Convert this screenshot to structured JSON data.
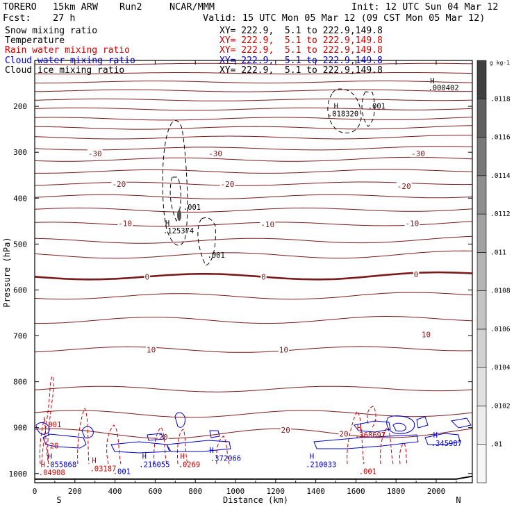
{
  "header": {
    "model": "TORERO",
    "resolution": "15km ARW",
    "run": "Run2",
    "org": "NCAR/MMM",
    "init": "Init: 12 UTC Sun 04 Mar 12",
    "fcst_label": "Fcst:",
    "fcst_value": "27 h",
    "valid": "Valid: 15 UTC Mon 05 Mar 12 (09 CST Mon 05 Mar 12)"
  },
  "legend": [
    {
      "label": "Snow mixing ratio",
      "xy": "",
      "color": "#000000"
    },
    {
      "label": "Temperature",
      "xy": "XY= 222.9,  5.1 to 222.9,149.8",
      "color": "#cc0000"
    },
    {
      "label": "Rain water mixing ratio",
      "xy": "XY= 222.9,  5.1 to 222.9,149.8",
      "color": "#cc0000"
    },
    {
      "label": "Cloud water mixing ratio",
      "xy": "XY= 222.9,  5.1 to 222.9,149.8",
      "color": "#0000cc"
    },
    {
      "label": "Cloud ice mixing ratio",
      "xy": "XY= 222.9,  5.1 to 222.9,149.8",
      "color": "#000000"
    }
  ],
  "legend_snow_xy": "XY= 222.9,  5.1 to 222.9,149.8",
  "chart_data": {
    "type": "line",
    "xlabel": "Distance (km)",
    "ylabel": "Pressure (hPa)",
    "xlim": [
      0,
      2180
    ],
    "ylim": [
      1020,
      100
    ],
    "x_ticks": [
      "0",
      "200",
      "400",
      "600",
      "800",
      "1000",
      "1200",
      "1400",
      "1600",
      "1800",
      "2000"
    ],
    "y_ticks": [
      "200",
      "300",
      "400",
      "500",
      "600",
      "700",
      "800",
      "900",
      "1000"
    ],
    "x_end_labels": {
      "left": "S",
      "right": "N"
    },
    "colorbar": {
      "unit": "g kg-1",
      "ticks": [
        ".01",
        ".0102",
        ".0104",
        ".0106",
        ".0108",
        ".011",
        ".0112",
        ".0114",
        ".0116",
        ".0118"
      ],
      "grays": [
        "#f6f6f6",
        "#ececec",
        "#e0e0e0",
        "#d2d2d2",
        "#c4c4c4",
        "#b4b4b4",
        "#a2a2a2",
        "#8e8e8e",
        "#787878",
        "#606060",
        "#404040"
      ]
    },
    "temperature_isotherms": {
      "label_values": [
        "-30",
        "-20",
        "-10",
        "0",
        "10",
        "20"
      ],
      "labels": [
        {
          "text": "-30",
          "x": 300,
          "p": 303
        },
        {
          "text": "-30",
          "x": 900,
          "p": 303
        },
        {
          "text": "-30",
          "x": 1910,
          "p": 303
        },
        {
          "text": "-20",
          "x": 420,
          "p": 369
        },
        {
          "text": "-20",
          "x": 960,
          "p": 369
        },
        {
          "text": "-20",
          "x": 1840,
          "p": 374
        },
        {
          "text": "-10",
          "x": 450,
          "p": 455
        },
        {
          "text": "-10",
          "x": 1160,
          "p": 457
        },
        {
          "text": "-10",
          "x": 1880,
          "p": 455
        },
        {
          "text": "0",
          "x": 560,
          "p": 571
        },
        {
          "text": "0",
          "x": 1140,
          "p": 571
        },
        {
          "text": "0",
          "x": 1900,
          "p": 566
        },
        {
          "text": "10",
          "x": 580,
          "p": 730
        },
        {
          "text": "10",
          "x": 1240,
          "p": 730
        },
        {
          "text": "10",
          "x": 1950,
          "p": 697
        },
        {
          "text": "20",
          "x": 640,
          "p": 920
        },
        {
          "text": "20",
          "x": 1250,
          "p": 905
        },
        {
          "text": "20",
          "x": 1540,
          "p": 913
        }
      ]
    },
    "annotations": [
      {
        "text": "H",
        "x": 1970,
        "p": 150,
        "color": "#000000"
      },
      {
        "text": ".000402",
        "x": 1960,
        "p": 165,
        "color": "#000000"
      },
      {
        "text": "H",
        "x": 1490,
        "p": 205,
        "color": "#000000"
      },
      {
        "text": ".018320",
        "x": 1460,
        "p": 222,
        "color": "#000000"
      },
      {
        "text": ".001",
        "x": 1660,
        "p": 205,
        "color": "#000000"
      },
      {
        "text": ".001",
        "x": 740,
        "p": 425,
        "color": "#000000"
      },
      {
        "text": "H",
        "x": 650,
        "p": 460,
        "color": "#000000"
      },
      {
        "text": ".125374",
        "x": 640,
        "p": 477,
        "color": "#000000"
      },
      {
        "text": ".001",
        "x": 860,
        "p": 530,
        "color": "#000000"
      },
      {
        "text": ".001",
        "x": 45,
        "p": 899,
        "color": "#cc0000"
      },
      {
        "text": "20",
        "x": 75,
        "p": 945,
        "color": "#cc0000"
      },
      {
        "text": "H",
        "x": 65,
        "p": 968,
        "color": "#0000cc"
      },
      {
        "text": ".055868",
        "x": 55,
        "p": 986,
        "color": "#0000cc"
      },
      {
        "text": "H",
        "x": 30,
        "p": 986,
        "color": "#cc0000"
      },
      {
        "text": ".04908",
        "x": 20,
        "p": 1003,
        "color": "#cc0000"
      },
      {
        "text": "H",
        "x": 285,
        "p": 977,
        "color": "#cc0000"
      },
      {
        "text": ".03187",
        "x": 275,
        "p": 995,
        "color": "#cc0000"
      },
      {
        "text": ".001",
        "x": 390,
        "p": 1001,
        "color": "#0000cc"
      },
      {
        "text": "H",
        "x": 535,
        "p": 968,
        "color": "#0000cc"
      },
      {
        "text": ".216055",
        "x": 520,
        "p": 986,
        "color": "#0000cc"
      },
      {
        "text": "H",
        "x": 725,
        "p": 968,
        "color": "#cc0000"
      },
      {
        "text": ".0269",
        "x": 715,
        "p": 986,
        "color": "#cc0000"
      },
      {
        "text": "H",
        "x": 870,
        "p": 955,
        "color": "#0000cc"
      },
      {
        "text": ".372066",
        "x": 875,
        "p": 972,
        "color": "#0000cc"
      },
      {
        "text": "H",
        "x": 1370,
        "p": 968,
        "color": "#0000cc"
      },
      {
        "text": ".210033",
        "x": 1350,
        "p": 986,
        "color": "#0000cc"
      },
      {
        "text": "H",
        "x": 1605,
        "p": 906,
        "color": "#cc0000"
      },
      {
        "text": ".368697",
        "x": 1595,
        "p": 922,
        "color": "#cc0000"
      },
      {
        "text": ".001",
        "x": 1615,
        "p": 1001,
        "color": "#cc0000"
      },
      {
        "text": "H",
        "x": 1985,
        "p": 922,
        "color": "#0000cc"
      },
      {
        "text": ".345987",
        "x": 1975,
        "p": 940,
        "color": "#0000cc"
      }
    ]
  }
}
